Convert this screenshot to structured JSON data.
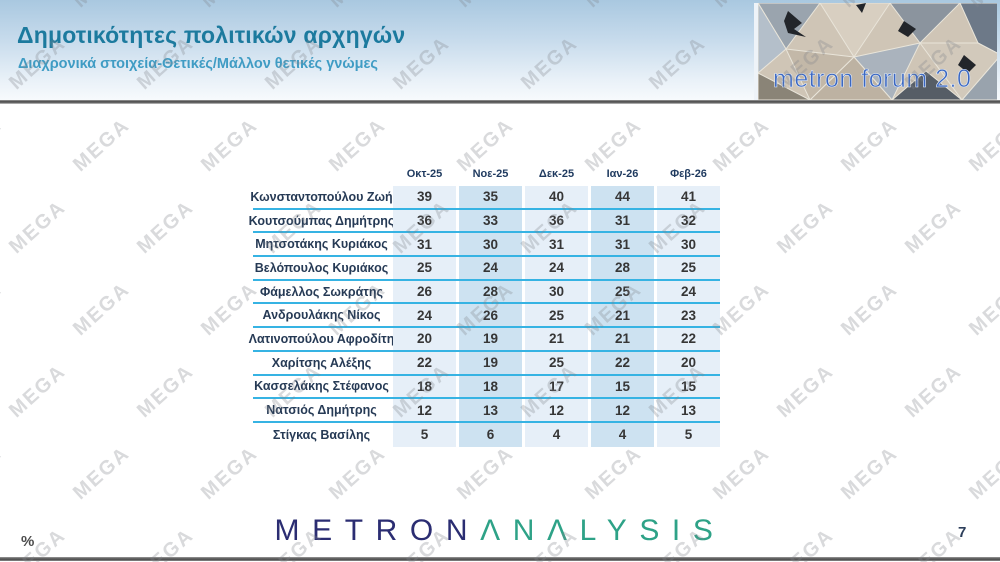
{
  "header": {
    "title": "Δημοτικότητες πολιτικών αρχηγών",
    "subtitle": "Διαχρονικά στοιχεία-Θετικές/Μάλλον θετικές γνώμες",
    "logo_caption": "metron forum 2.0"
  },
  "watermark": {
    "text": "MEGA"
  },
  "footer": {
    "brand_primary": "METRON",
    "brand_secondary": "ΛNΛLYSIS",
    "percent_label": "%",
    "page_number": "7"
  },
  "colors": {
    "title": "#1c7a9e",
    "subtitle": "#3f9cc4",
    "row_separator": "#36b3e3",
    "cell_light": "#e6eff8",
    "cell_medium": "#cde2f1",
    "brand_navy": "#2b2d72",
    "brand_green": "#2ea287",
    "logo_caption_blue": "#3a67c2"
  },
  "chart_data": {
    "type": "table",
    "title": "Δημοτικότητες πολιτικών αρχηγών",
    "subtitle": "Διαχρονικά στοιχεία-Θετικές/Μάλλον θετικές γνώμες",
    "unit": "%",
    "columns": [
      "Οκτ-25",
      "Νοε-25",
      "Δεκ-25",
      "Ιαν-26",
      "Φεβ-26"
    ],
    "series": [
      {
        "name": "Κωνσταντοπούλου  Ζωή",
        "values": [
          39,
          35,
          40,
          44,
          41
        ]
      },
      {
        "name": "Κουτσούμπας Δημήτρης",
        "values": [
          36,
          33,
          36,
          31,
          32
        ]
      },
      {
        "name": "Μητσοτάκης  Κυριάκος",
        "values": [
          31,
          30,
          31,
          31,
          30
        ]
      },
      {
        "name": "Βελόπουλος Κυριάκος",
        "values": [
          25,
          24,
          24,
          28,
          25
        ]
      },
      {
        "name": "Φάμελλος  Σωκράτης",
        "values": [
          26,
          28,
          30,
          25,
          24
        ]
      },
      {
        "name": "Ανδρουλάκης  Νίκος",
        "values": [
          24,
          26,
          25,
          21,
          23
        ]
      },
      {
        "name": "Λατινοπούλου Αφροδίτη",
        "values": [
          20,
          19,
          21,
          21,
          22
        ]
      },
      {
        "name": "Χαρίτσης Αλέξης",
        "values": [
          22,
          19,
          25,
          22,
          20
        ]
      },
      {
        "name": "Κασσελάκης Στέφανος",
        "values": [
          18,
          18,
          17,
          15,
          15
        ]
      },
      {
        "name": "Νατσιός Δημήτρης",
        "values": [
          12,
          13,
          12,
          12,
          13
        ]
      },
      {
        "name": "Στίγκας Βασίλης",
        "values": [
          5,
          6,
          4,
          4,
          5
        ]
      }
    ]
  }
}
